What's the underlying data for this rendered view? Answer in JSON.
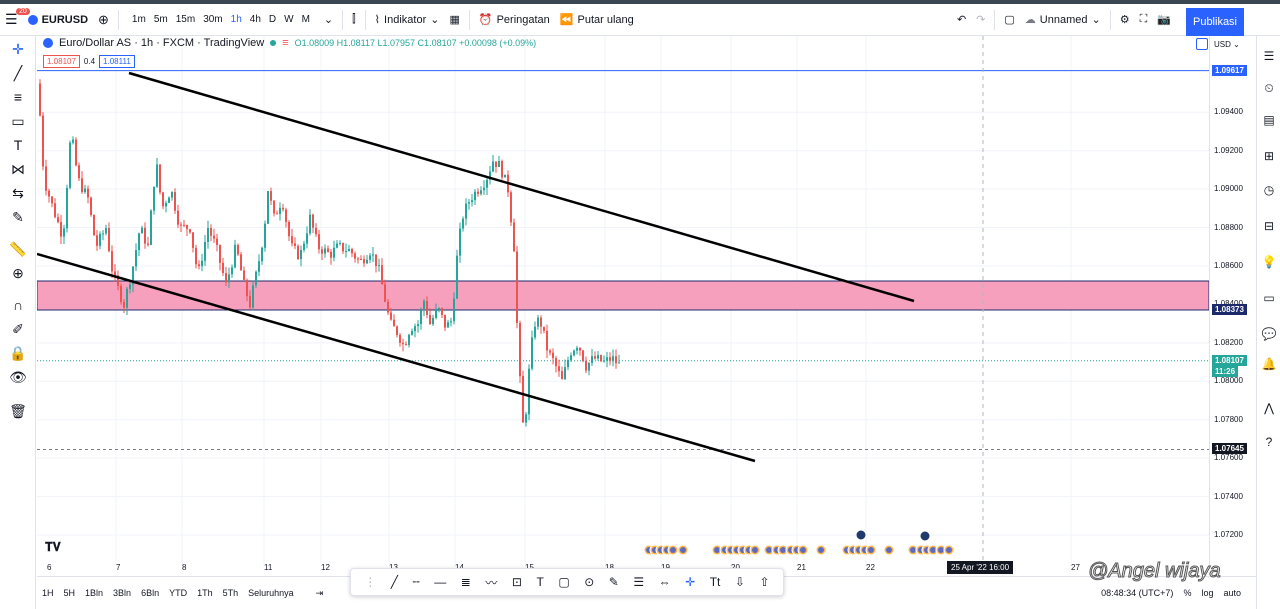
{
  "topbar": {
    "badge": "20",
    "symbol": "EURUSD",
    "intervals": [
      "1m",
      "5m",
      "15m",
      "30m",
      "1h",
      "4h",
      "D",
      "W",
      "M"
    ],
    "active_interval": "1h",
    "indicators_label": "Indikator",
    "alerts_label": "Peringatan",
    "replay_label": "Putar ulang",
    "layout_name": "Unnamed",
    "publish_label": "Publikasi"
  },
  "legend": {
    "title": "Euro/Dollar AS · 1h · FXCM · TradingView",
    "ohlc": "O1.08009 H1.08117 L1.07957 C1.08107 +0.00098 (+0.09%)",
    "bid": "1.08107",
    "spread": "0.4",
    "ask": "1.08111"
  },
  "price_axis": {
    "currency": "USD",
    "ticks": [
      "1.09400",
      "1.09200",
      "1.09000",
      "1.08800",
      "1.08600",
      "1.08400",
      "1.08200",
      "1.08000",
      "1.07800",
      "1.07600",
      "1.07400",
      "1.07200"
    ],
    "tag_top": "1.09617",
    "tag_zone": "1.08373",
    "tag_current": "1.08107",
    "tag_countdown": "11:26",
    "tag_low": "1.07645"
  },
  "time_axis": {
    "labels": [
      "6",
      "7",
      "8",
      "11",
      "12",
      "13",
      "14",
      "15",
      "18",
      "19",
      "20",
      "21",
      "22",
      "27"
    ],
    "crosshair_label": "25 Apr '22   16:00"
  },
  "bottombar": {
    "ranges": [
      "1H",
      "5H",
      "1Bln",
      "3Bln",
      "6Bln",
      "YTD",
      "1Th",
      "5Th",
      "Seluruhnya"
    ],
    "clock": "08:48:34 (UTC+7)",
    "percent": "%",
    "log": "log",
    "auto": "auto"
  },
  "watermark": "@Angel wijaya",
  "colors": {
    "bull": "#26a69a",
    "bear": "#ef5350",
    "zone": "#f48fb1",
    "accent": "#2962ff",
    "axis_tag_dark": "#131722"
  }
}
